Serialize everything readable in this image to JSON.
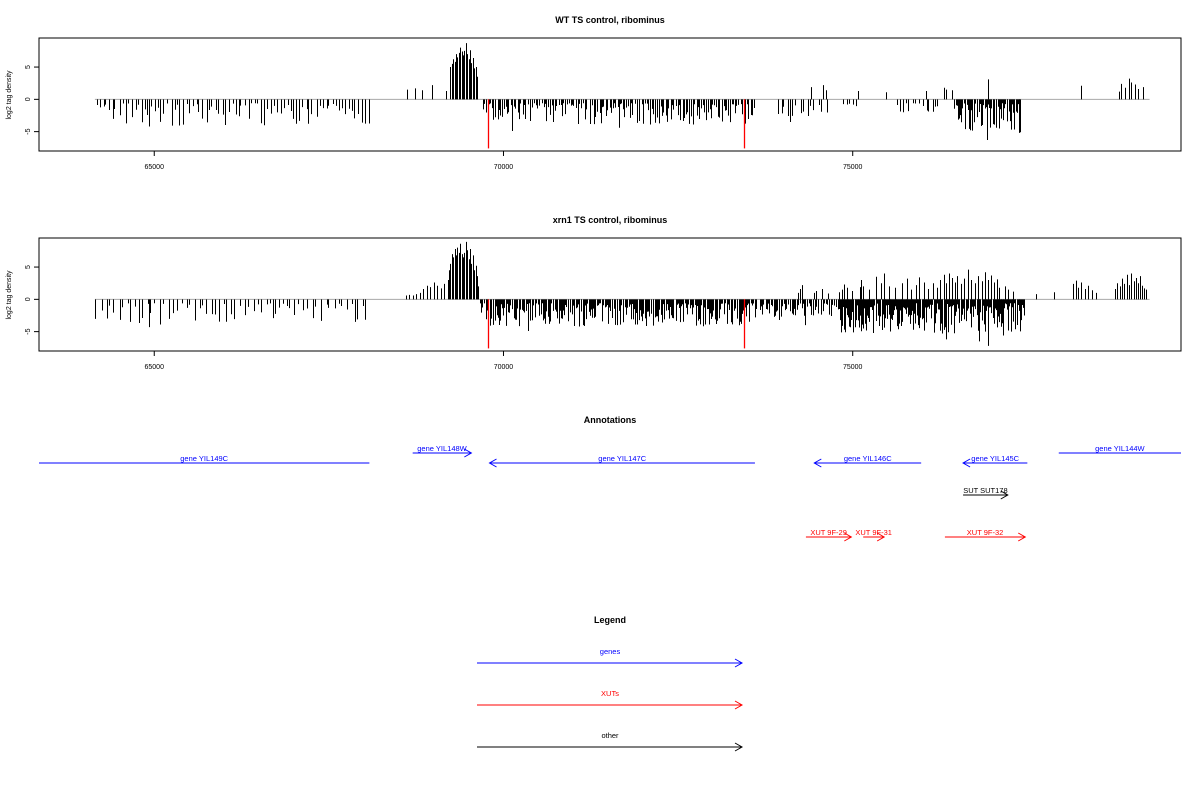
{
  "chart_data": [
    {
      "type": "bar",
      "title": "WT TS control, ribominus",
      "ylabel": "log2 tag density",
      "xlim": [
        63350,
        79700
      ],
      "ylim": [
        -8,
        9.5
      ],
      "x_ticks": [
        65000,
        70000,
        75000
      ],
      "y_ticks": [
        -5,
        0,
        5
      ],
      "highlight_color": "#ff0000",
      "highlight_bars": [
        {
          "x": 69780,
          "y": -7.6
        },
        {
          "x": 73450,
          "y": -7.6
        }
      ],
      "pos_bars": [
        [
          68620,
          1.5
        ],
        [
          68730,
          1.7
        ],
        [
          68830,
          1.4
        ],
        [
          68980,
          2.2
        ],
        [
          69170,
          1.3
        ],
        [
          69230,
          5.0
        ],
        [
          69260,
          5.5
        ],
        [
          69280,
          6.2
        ],
        [
          69300,
          5.8
        ],
        [
          69320,
          7.0
        ],
        [
          69340,
          6.5
        ],
        [
          69360,
          7.2
        ],
        [
          69380,
          8.0
        ],
        [
          69400,
          7.4
        ],
        [
          69420,
          6.8
        ],
        [
          69440,
          7.5
        ],
        [
          69460,
          8.7
        ],
        [
          69480,
          7.0
        ],
        [
          69500,
          6.2
        ],
        [
          69520,
          7.6
        ],
        [
          69540,
          5.6
        ],
        [
          69560,
          6.4
        ],
        [
          69580,
          4.8
        ],
        [
          69600,
          5.0
        ],
        [
          69620,
          3.5
        ],
        [
          74400,
          1.9
        ],
        [
          74580,
          2.2
        ],
        [
          74620,
          1.4
        ],
        [
          75070,
          1.3
        ],
        [
          75470,
          1.1
        ],
        [
          76050,
          1.3
        ],
        [
          76300,
          1.8
        ],
        [
          76330,
          1.5
        ],
        [
          76420,
          1.4
        ],
        [
          76930,
          3.1
        ],
        [
          78270,
          2.1
        ],
        [
          78810,
          1.2
        ],
        [
          78840,
          2.4
        ],
        [
          78900,
          1.8
        ],
        [
          78960,
          3.2
        ],
        [
          78990,
          2.6
        ],
        [
          79040,
          2.3
        ],
        [
          79090,
          1.6
        ],
        [
          79160,
          1.9
        ]
      ],
      "neg_segments": [
        {
          "from": 64150,
          "to": 68080,
          "n": 85,
          "max": 3.5,
          "big": [
            [
              64930,
              -4.2
            ],
            [
              66350,
              -3.0
            ],
            [
              67980,
              -3.6
            ]
          ]
        },
        {
          "from": 69700,
          "to": 73600,
          "n": 160,
          "max": 3.3,
          "big": [
            [
              70120,
              -4.9
            ],
            [
              71650,
              -4.4
            ],
            [
              72100,
              -3.9
            ],
            [
              72400,
              -3.1
            ]
          ]
        },
        {
          "from": 73900,
          "to": 74650,
          "n": 14,
          "max": 2.0,
          "big": [
            [
              74100,
              -3.5
            ]
          ]
        },
        {
          "from": 74850,
          "to": 75050,
          "n": 5,
          "max": 1.5,
          "big": []
        },
        {
          "from": 75600,
          "to": 76250,
          "n": 14,
          "max": 1.6,
          "big": []
        },
        {
          "from": 76450,
          "to": 77400,
          "n": 60,
          "max": 4.5,
          "big": [
            [
              76920,
              -6.3
            ],
            [
              77380,
              -5.2
            ]
          ]
        }
      ]
    },
    {
      "type": "bar",
      "title": "xrn1 TS control, ribominus",
      "ylabel": "log2 tag density",
      "xlim": [
        63350,
        79700
      ],
      "ylim": [
        -8,
        9.5
      ],
      "x_ticks": [
        65000,
        70000,
        75000
      ],
      "y_ticks": [
        -5,
        0,
        5
      ],
      "highlight_color": "#ff0000",
      "highlight_bars": [
        {
          "x": 69780,
          "y": -7.6
        },
        {
          "x": 73450,
          "y": -7.6
        }
      ],
      "pos_bars": [
        [
          68600,
          0.6
        ],
        [
          68650,
          0.7
        ],
        [
          68700,
          0.6
        ],
        [
          68750,
          0.8
        ],
        [
          68800,
          1.0
        ],
        [
          68850,
          1.6
        ],
        [
          68900,
          2.1
        ],
        [
          68950,
          1.9
        ],
        [
          69000,
          2.6
        ],
        [
          69050,
          2.1
        ],
        [
          69100,
          1.7
        ],
        [
          69150,
          2.4
        ],
        [
          69200,
          3.0
        ],
        [
          69220,
          4.5
        ],
        [
          69240,
          5.5
        ],
        [
          69260,
          7.0
        ],
        [
          69280,
          6.5
        ],
        [
          69300,
          7.8
        ],
        [
          69320,
          6.8
        ],
        [
          69340,
          8.0
        ],
        [
          69360,
          7.2
        ],
        [
          69380,
          8.6
        ],
        [
          69400,
          7.0
        ],
        [
          69420,
          6.5
        ],
        [
          69440,
          7.2
        ],
        [
          69460,
          8.9
        ],
        [
          69480,
          7.6
        ],
        [
          69500,
          6.2
        ],
        [
          69520,
          7.8
        ],
        [
          69540,
          5.5
        ],
        [
          69560,
          6.8
        ],
        [
          69580,
          4.5
        ],
        [
          69600,
          5.2
        ],
        [
          69620,
          3.6
        ],
        [
          69640,
          2.0
        ],
        [
          74220,
          1.0
        ],
        [
          74250,
          1.6
        ],
        [
          74280,
          2.2
        ],
        [
          74450,
          1.0
        ],
        [
          74480,
          1.3
        ],
        [
          74560,
          1.6
        ],
        [
          74650,
          0.9
        ],
        [
          74800,
          1.1
        ],
        [
          74850,
          1.5
        ],
        [
          74880,
          2.3
        ],
        [
          74920,
          1.8
        ],
        [
          74990,
          1.3
        ],
        [
          75100,
          1.9
        ],
        [
          75120,
          3.0
        ],
        [
          75150,
          2.0
        ],
        [
          75230,
          1.5
        ],
        [
          75330,
          3.5
        ],
        [
          75400,
          2.5
        ],
        [
          75450,
          4.0
        ],
        [
          75520,
          2.0
        ],
        [
          75600,
          1.8
        ],
        [
          75700,
          2.5
        ],
        [
          75780,
          3.2
        ],
        [
          75830,
          1.5
        ],
        [
          75900,
          2.2
        ],
        [
          75950,
          3.4
        ],
        [
          76020,
          2.6
        ],
        [
          76080,
          1.6
        ],
        [
          76150,
          2.5
        ],
        [
          76200,
          1.8
        ],
        [
          76250,
          3.0
        ],
        [
          76300,
          3.8
        ],
        [
          76330,
          2.5
        ],
        [
          76380,
          4.0
        ],
        [
          76420,
          3.3
        ],
        [
          76460,
          2.6
        ],
        [
          76500,
          3.6
        ],
        [
          76550,
          2.4
        ],
        [
          76600,
          3.2
        ],
        [
          76650,
          4.6
        ],
        [
          76700,
          3.0
        ],
        [
          76750,
          2.5
        ],
        [
          76800,
          3.6
        ],
        [
          76850,
          2.8
        ],
        [
          76900,
          4.2
        ],
        [
          76940,
          3.0
        ],
        [
          76980,
          3.7
        ],
        [
          77020,
          2.6
        ],
        [
          77060,
          3.1
        ],
        [
          77100,
          1.8
        ],
        [
          77180,
          2.0
        ],
        [
          77230,
          1.5
        ],
        [
          77300,
          1.2
        ],
        [
          77620,
          0.8
        ],
        [
          77880,
          1.1
        ],
        [
          78160,
          2.4
        ],
        [
          78190,
          2.9
        ],
        [
          78230,
          1.8
        ],
        [
          78270,
          2.6
        ],
        [
          78320,
          1.6
        ],
        [
          78370,
          2.1
        ],
        [
          78420,
          1.4
        ],
        [
          78480,
          1.0
        ],
        [
          78760,
          1.6
        ],
        [
          78790,
          2.5
        ],
        [
          78820,
          2.0
        ],
        [
          78860,
          3.2
        ],
        [
          78890,
          2.4
        ],
        [
          78920,
          3.8
        ],
        [
          78950,
          2.2
        ],
        [
          78980,
          4.0
        ],
        [
          79020,
          2.8
        ],
        [
          79050,
          3.3
        ],
        [
          79080,
          2.5
        ],
        [
          79110,
          3.6
        ],
        [
          79140,
          2.1
        ],
        [
          79170,
          1.7
        ],
        [
          79200,
          1.5
        ]
      ],
      "neg_segments": [
        {
          "from": 64150,
          "to": 68080,
          "n": 65,
          "max": 3.3,
          "big": [
            [
              64930,
              -4.3
            ],
            [
              66700,
              -2.9
            ],
            [
              67900,
              -3.1
            ]
          ]
        },
        {
          "from": 69660,
          "to": 73620,
          "n": 230,
          "max": 3.6,
          "big": [
            [
              69950,
              -3.3
            ],
            [
              70350,
              -4.9
            ],
            [
              71080,
              -4.2
            ],
            [
              72880,
              -3.9
            ],
            [
              73200,
              -3.8
            ]
          ]
        },
        {
          "from": 73650,
          "to": 74800,
          "n": 55,
          "max": 2.3,
          "big": [
            [
              74320,
              -4.0
            ],
            [
              73950,
              -3.2
            ]
          ]
        },
        {
          "from": 74800,
          "to": 77450,
          "n": 220,
          "max": 4.8,
          "big": [
            [
              76340,
              -6.2
            ],
            [
              76810,
              -6.5
            ],
            [
              76940,
              -7.2
            ],
            [
              77150,
              -5.6
            ]
          ]
        }
      ]
    }
  ],
  "annotations": {
    "title": "Annotations",
    "xlim": [
      63350,
      79700
    ],
    "genes": [
      {
        "label": "gene YIL149C",
        "start": 63350,
        "end": 68080,
        "strand": "-",
        "row": 2,
        "color": "#0000ff",
        "arrow": false
      },
      {
        "label": "gene YIL148W",
        "start": 68700,
        "end": 69540,
        "strand": "+",
        "row": 1,
        "color": "#0000ff",
        "arrow": true
      },
      {
        "label": "gene YIL147C",
        "start": 69800,
        "end": 73600,
        "strand": "-",
        "row": 2,
        "color": "#0000ff",
        "arrow": true
      },
      {
        "label": "gene YIL146C",
        "start": 74450,
        "end": 75980,
        "strand": "-",
        "row": 2,
        "color": "#0000ff",
        "arrow": true
      },
      {
        "label": "gene YIL145C",
        "start": 76580,
        "end": 77500,
        "strand": "-",
        "row": 2,
        "color": "#0000ff",
        "arrow": true
      },
      {
        "label": "gene YIL144W",
        "start": 77950,
        "end": 79700,
        "strand": "+",
        "row": 1,
        "color": "#0000ff",
        "arrow": false
      }
    ],
    "others": [
      {
        "label": "SUT SUT178",
        "start": 76580,
        "end": 77220,
        "strand": "+",
        "row": 3,
        "color": "#000000",
        "arrow": true
      }
    ],
    "xuts": [
      {
        "label": "XUT 9F-29",
        "start": 74330,
        "end": 74980,
        "strand": "+",
        "row": 4,
        "color": "#ff0000",
        "arrow": true
      },
      {
        "label": "XUT 9F-31",
        "start": 75150,
        "end": 75450,
        "strand": "+",
        "row": 4,
        "color": "#ff0000",
        "arrow": true
      },
      {
        "label": "XUT 9F-32",
        "start": 76320,
        "end": 77470,
        "strand": "+",
        "row": 4,
        "color": "#ff0000",
        "arrow": true
      }
    ]
  },
  "legend": {
    "title": "Legend",
    "items": [
      {
        "label": "genes",
        "color": "#0000ff"
      },
      {
        "label": "XUTs",
        "color": "#ff0000"
      },
      {
        "label": "other",
        "color": "#000000"
      }
    ]
  }
}
